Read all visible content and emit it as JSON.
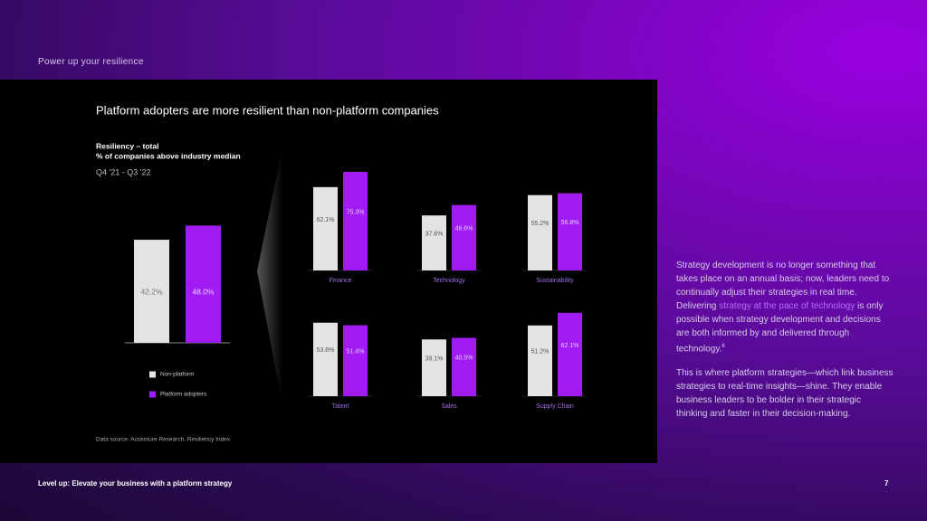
{
  "header": "Power up your resilience",
  "panel": {
    "title": "Platform adopters are more resilient than non-platform companies",
    "note": "Data source: Accenture Research, Resiliency Index"
  },
  "chart_data": [
    {
      "type": "bar",
      "title": "Resiliency – total",
      "subtitle": "% of companies above industry median",
      "period": "Q4 '21 - Q3 '22",
      "categories": [
        null
      ],
      "ylim": [
        0,
        50
      ],
      "series": [
        {
          "name": "Non-platform",
          "color": "#e3e3e3",
          "values": [
            42.2
          ],
          "value_labels": [
            "42.2%"
          ]
        },
        {
          "name": "Platform adopters",
          "color": "#a01cf2",
          "values": [
            48.0
          ],
          "value_labels": [
            "48.0%"
          ]
        }
      ]
    },
    {
      "type": "bar",
      "title": "Finance",
      "categories": [
        null,
        null
      ],
      "ylim": [
        -10,
        80
      ],
      "colors": [
        "#e3e3e3",
        "#a01cf2"
      ],
      "values": [
        62.1,
        75.3
      ],
      "value_labels": [
        "62.1%",
        "75.3%"
      ]
    },
    {
      "type": "bar",
      "title": "Technology",
      "categories": [
        null,
        null
      ],
      "ylim": [
        -10,
        80
      ],
      "colors": [
        "#e3e3e3",
        "#a01cf2"
      ],
      "values": [
        37.6,
        46.6
      ],
      "value_labels": [
        "37.6%",
        "46.6%"
      ]
    },
    {
      "type": "bar",
      "title": "Sustainability",
      "categories": [
        null,
        null
      ],
      "ylim": [
        -10,
        80
      ],
      "colors": [
        "#e3e3e3",
        "#a01cf2"
      ],
      "values": [
        55.2,
        56.8
      ],
      "value_labels": [
        "55.2%",
        "56.8%"
      ]
    },
    {
      "type": "bar",
      "title": "Talent",
      "categories": [
        null,
        null
      ],
      "ylim": [
        -10,
        80
      ],
      "colors": [
        "#e3e3e3",
        "#a01cf2"
      ],
      "values": [
        53.6,
        51.4
      ],
      "value_labels": [
        "53.6%",
        "51.4%"
      ]
    },
    {
      "type": "bar",
      "title": "Sales",
      "categories": [
        null,
        null
      ],
      "ylim": [
        -10,
        80
      ],
      "colors": [
        "#e3e3e3",
        "#a01cf2"
      ],
      "values": [
        39.1,
        40.5
      ],
      "value_labels": [
        "39.1%",
        "40.5%"
      ]
    },
    {
      "type": "bar",
      "title": "Supply Chain",
      "categories": [
        null,
        null
      ],
      "ylim": [
        -10,
        80
      ],
      "colors": [
        "#e3e3e3",
        "#a01cf2"
      ],
      "values": [
        51.2,
        62.1
      ],
      "value_labels": [
        "51.2%",
        "62.1%"
      ]
    }
  ],
  "body": [
    {
      "before": "Strategy development is no longer something that takes place on an annual basis; now, leaders need to continually adjust their strategies in real time. Delivering ",
      "highlight": "strategy at the pace of technology",
      "after": " is only possible when strategy development and decisions are both informed by and delivered through technology.",
      "footnote": "6"
    },
    {
      "text": "This is where platform strategies—which link business strategies to real-time insights—shine. They enable business leaders to be bolder in their strategic thinking and faster in their decision-making."
    }
  ],
  "footer": "Level up: Elevate your business with a platform strategy",
  "page_number": 7
}
